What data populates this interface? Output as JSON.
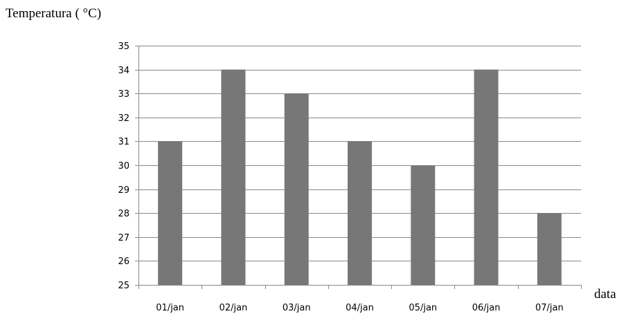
{
  "chart_data": {
    "type": "bar",
    "title": "",
    "ylabel": "Temperatura ( °C)",
    "xlabel": "data",
    "categories": [
      "01/jan",
      "02/jan",
      "03/jan",
      "04/jan",
      "05/jan",
      "06/jan",
      "07/jan"
    ],
    "values": [
      31,
      34,
      33,
      31,
      30,
      34,
      28
    ],
    "ylim": [
      25,
      35
    ],
    "yticks": [
      "25",
      "26",
      "27",
      "28",
      "29",
      "30",
      "31",
      "32",
      "33",
      "34",
      "35"
    ],
    "grid": true,
    "legend": "none",
    "colors": {
      "bar": "#777777",
      "grid": "#888888"
    }
  }
}
